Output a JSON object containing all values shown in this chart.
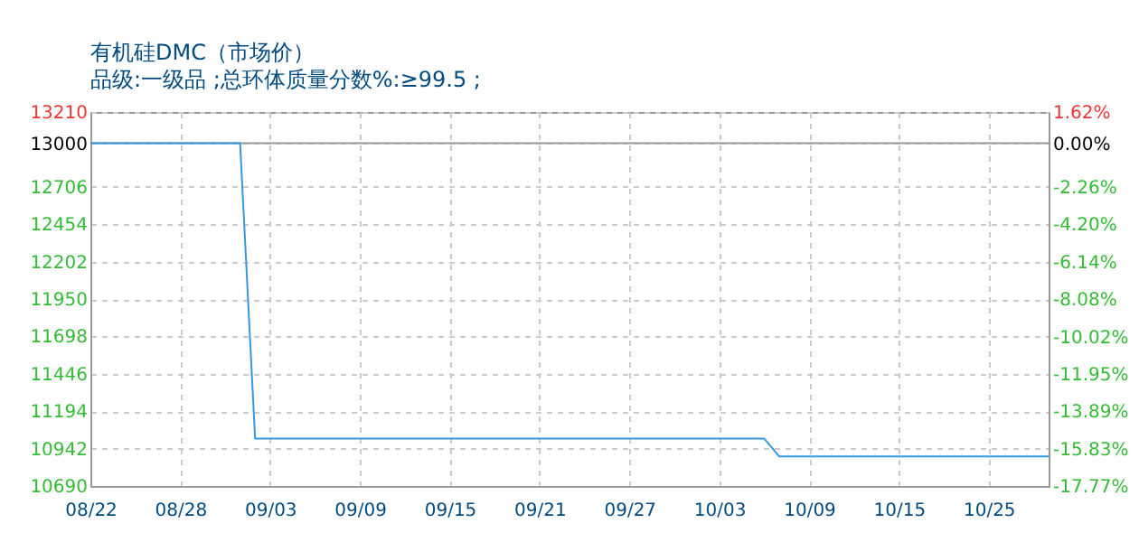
{
  "chart_data": {
    "type": "line",
    "title": "有机硅DMC（市场价）",
    "subtitle": "品级:一级品 ;总环体质量分数%:≥99.5 ;",
    "categories": [
      "08/22",
      null,
      null,
      null,
      null,
      null,
      "08/28",
      null,
      null,
      null,
      null,
      null,
      "09/03",
      null,
      null,
      null,
      null,
      null,
      "09/09",
      null,
      null,
      null,
      null,
      null,
      "09/15",
      null,
      null,
      null,
      null,
      null,
      "09/21",
      null,
      null,
      null,
      null,
      null,
      "09/27",
      null,
      null,
      null,
      null,
      null,
      "10/03",
      null,
      null,
      null,
      null,
      null,
      "10/09",
      null,
      null,
      null,
      null,
      null,
      "10/15",
      null,
      null,
      null,
      null,
      null,
      "10/25",
      null,
      null,
      null,
      null
    ],
    "series": [
      {
        "color": "#3399dd",
        "values": [
          13000,
          13000,
          13000,
          13000,
          13000,
          13000,
          13000,
          13000,
          13000,
          13000,
          13000,
          11010,
          11010,
          11010,
          11010,
          11010,
          11010,
          11010,
          11010,
          11010,
          11010,
          11010,
          11010,
          11010,
          11010,
          11010,
          11010,
          11010,
          11010,
          11010,
          11010,
          11010,
          11010,
          11010,
          11010,
          11010,
          11010,
          11010,
          11010,
          11010,
          11010,
          11010,
          11010,
          11010,
          11010,
          11010,
          10890,
          10890,
          10890,
          10890,
          10890,
          10890,
          10890,
          10890,
          10890,
          10890,
          10890,
          10890,
          10890,
          10890,
          10890,
          10890,
          10890,
          10890,
          10890
        ]
      }
    ],
    "ylim": [
      10690,
      13210
    ],
    "yticks": [
      10690,
      10942,
      11194,
      11446,
      11698,
      11950,
      12202,
      12454,
      12706,
      13000,
      13210
    ],
    "y2lim": [
      -17.77,
      1.62
    ],
    "y2ticks": [
      {
        "value": -17.77,
        "label": "-17.77%"
      },
      {
        "value": -15.83,
        "label": "-15.83%"
      },
      {
        "value": -13.89,
        "label": "-13.89%"
      },
      {
        "value": -11.95,
        "label": "-11.95%"
      },
      {
        "value": -10.02,
        "label": "-10.02%"
      },
      {
        "value": -8.08,
        "label": "-8.08%"
      },
      {
        "value": -6.14,
        "label": "-6.14%"
      },
      {
        "value": -4.2,
        "label": "-4.20%"
      },
      {
        "value": -2.26,
        "label": "-2.26%"
      },
      {
        "value": 0,
        "label": "0.00%"
      },
      {
        "value": 1.62,
        "label": "1.62%"
      }
    ],
    "ref_lines": [
      {
        "axis": "y",
        "value": 13000,
        "color": "#999999",
        "line_style": "solid"
      }
    ],
    "grid": true,
    "marker": "none",
    "line_style": "solid"
  }
}
